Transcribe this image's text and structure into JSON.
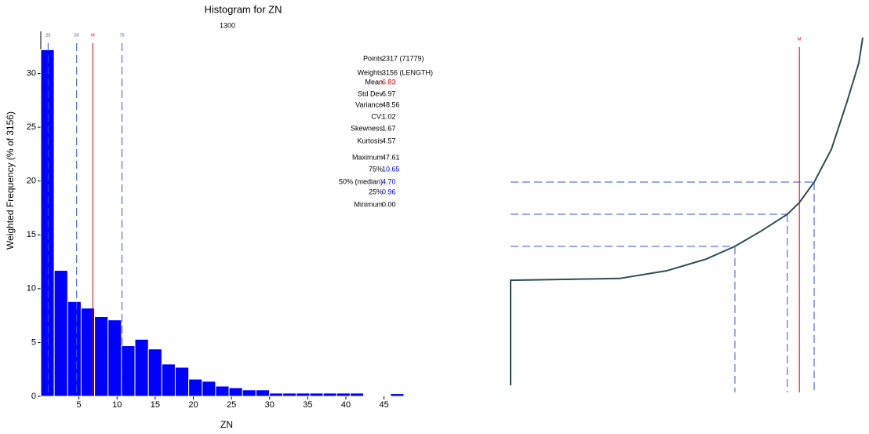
{
  "chart_data": [
    {
      "type": "histogram",
      "title": "Histogram for ZN",
      "subtitle": "1300",
      "x_label": "ZN",
      "y_label": "Weighted Frequency (% of 3156)",
      "bins": [
        0,
        1.76,
        3.53,
        5.29,
        7.05,
        8.82,
        10.58,
        12.34,
        14.11,
        15.87,
        17.63,
        19.4,
        21.16,
        22.92,
        24.69,
        26.45,
        28.21,
        29.98,
        31.74,
        33.5,
        35.27,
        37.03,
        38.79,
        40.56,
        42.32,
        44.08,
        45.85,
        47.61
      ],
      "values": [
        32.2,
        11.7,
        8.8,
        8.2,
        7.4,
        7.1,
        4.7,
        5.3,
        4.4,
        3.0,
        2.7,
        1.6,
        1.4,
        0.95,
        0.8,
        0.6,
        0.6,
        0.3,
        0.3,
        0.3,
        0.3,
        0.3,
        0.3,
        0.3,
        0,
        0,
        0.25
      ],
      "color": "#0000ff",
      "xlim": [
        0,
        47.61
      ],
      "ylim": [
        0,
        33.9
      ],
      "xticks": [
        5,
        10,
        15,
        20,
        25,
        30,
        35,
        40,
        45
      ],
      "yticks": [
        0,
        5,
        10,
        15,
        20,
        25,
        30
      ],
      "markers": [
        {
          "label": "25",
          "value": 0.96,
          "color": "#3355cc",
          "dashed": true
        },
        {
          "label": "50",
          "value": 4.7,
          "color": "#3355cc",
          "dashed": true
        },
        {
          "label": "M",
          "value": 6.83,
          "color": "#dd0000",
          "dashed": false
        },
        {
          "label": "75",
          "value": 10.65,
          "color": "#3355cc",
          "dashed": true
        }
      ],
      "stats": [
        {
          "label": "Points",
          "value": "2317 (71779)"
        },
        {
          "label": "Weights",
          "value": "3156 (LENGTH)"
        },
        {
          "label": "Mean",
          "value": "6.83",
          "color": "#dd0000"
        },
        {
          "label": "Std Dev",
          "value": "6.97"
        },
        {
          "label": "Variance",
          "value": "48.56"
        },
        {
          "label": "CV:",
          "value": "1.02"
        },
        {
          "label": "Skewness",
          "value": "1.67"
        },
        {
          "label": "Kurtosis",
          "value": "4.57"
        },
        {
          "label": "Maximum",
          "value": "47.61"
        },
        {
          "label": "75%",
          "value": "10.65",
          "color": "#0000ee"
        },
        {
          "label": "50% (median)",
          "value": "4.70",
          "color": "#0000ee"
        },
        {
          "label": "25%",
          "value": "0.96",
          "color": "#0000ee"
        },
        {
          "label": "Minimum",
          "value": "0.00"
        }
      ]
    },
    {
      "type": "line",
      "x": [
        0,
        0,
        30.96,
        44.3,
        55.5,
        63.7,
        71.0,
        78.6,
        82.0,
        86.2,
        91.1,
        95.5,
        98.9,
        100
      ],
      "values": [
        3.0,
        31.8,
        32.3,
        34.4,
        37.6,
        41.1,
        45.2,
        49.9,
        53.1,
        58.7,
        67.7,
        80.6,
        91.4,
        98.3
      ],
      "color": "#2f4f4f",
      "xlim": [
        0,
        100
      ],
      "ylim": [
        0,
        100
      ],
      "ref_x": [
        63.7,
        78.6,
        86.2
      ],
      "ref_y": [
        41.1,
        49.9,
        58.7
      ],
      "ref_color": "#3355cc",
      "mean_x": 82.0,
      "mean_label": "M",
      "mean_color": "#dd0000"
    }
  ]
}
